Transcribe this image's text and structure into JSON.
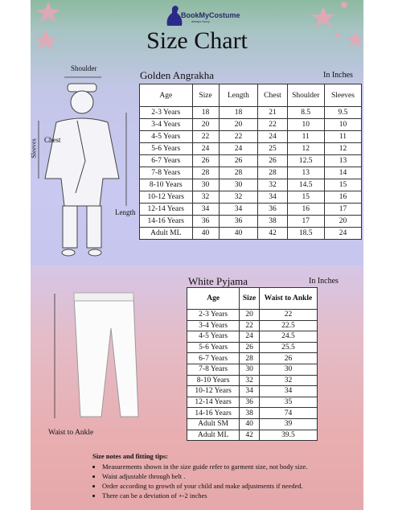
{
  "header": {
    "brand": "BookMyCostume",
    "tagline": "always fancy",
    "title": "Size Chart"
  },
  "top_section": {
    "illustration_labels": {
      "shoulder": "Shoulder",
      "chest": "Chest",
      "sleeves": "Sleeves",
      "length": "Length"
    },
    "table": {
      "title": "Golden Angrakha",
      "unit": "In Inches",
      "columns": [
        "Age",
        "Size",
        "Length",
        "Chest",
        "Shoulder",
        "Sleeves"
      ],
      "rows": [
        [
          "2-3 Years",
          "18",
          "18",
          "21",
          "8.5",
          "9.5"
        ],
        [
          "3-4 Years",
          "20",
          "20",
          "22",
          "10",
          "10"
        ],
        [
          "4-5 Years",
          "22",
          "22",
          "24",
          "11",
          "11"
        ],
        [
          "5-6 Years",
          "24",
          "24",
          "25",
          "12",
          "12"
        ],
        [
          "6-7 Years",
          "26",
          "26",
          "26",
          "12.5",
          "13"
        ],
        [
          "7-8 Years",
          "28",
          "28",
          "28",
          "13",
          "14"
        ],
        [
          "8-10 Years",
          "30",
          "30",
          "32",
          "14.5",
          "15"
        ],
        [
          "10-12 Years",
          "32",
          "32",
          "34",
          "15",
          "16"
        ],
        [
          "12-14 Years",
          "34",
          "34",
          "36",
          "16",
          "17"
        ],
        [
          "14-16 Years",
          "36",
          "36",
          "38",
          "17",
          "20"
        ],
        [
          "Adult ML",
          "40",
          "40",
          "42",
          "18.5",
          "24"
        ]
      ]
    }
  },
  "bottom_section": {
    "illustration_label": "Waist to Ankle",
    "table": {
      "title": "White Pyjama",
      "unit": "In Inches",
      "columns": [
        "Age",
        "Size",
        "Waist to Ankle"
      ],
      "rows": [
        [
          "2-3 Years",
          "20",
          "22"
        ],
        [
          "3-4 Years",
          "22",
          "22.5"
        ],
        [
          "4-5 Years",
          "24",
          "24.5"
        ],
        [
          "5-6 Years",
          "26",
          "25.5"
        ],
        [
          "6-7 Years",
          "28",
          "26"
        ],
        [
          "7-8 Years",
          "30",
          "30"
        ],
        [
          "8-10 Years",
          "32",
          "32"
        ],
        [
          "10-12 Years",
          "34",
          "34"
        ],
        [
          "12-14 Years",
          "36",
          "35"
        ],
        [
          "14-16 Years",
          "38",
          "74"
        ],
        [
          "Adult SM",
          "40",
          "39"
        ],
        [
          "Adult ML",
          "42",
          "39.5"
        ]
      ]
    }
  },
  "notes": {
    "title": "Size notes and fitting tips:",
    "items": [
      "Measurements shown in the size guide refer to garment size, not body size.",
      "Waist adjustable through belt .",
      "Order according to growth of your child and make adjustments if needed.",
      "There can be a deviation of +-2 inches"
    ]
  }
}
